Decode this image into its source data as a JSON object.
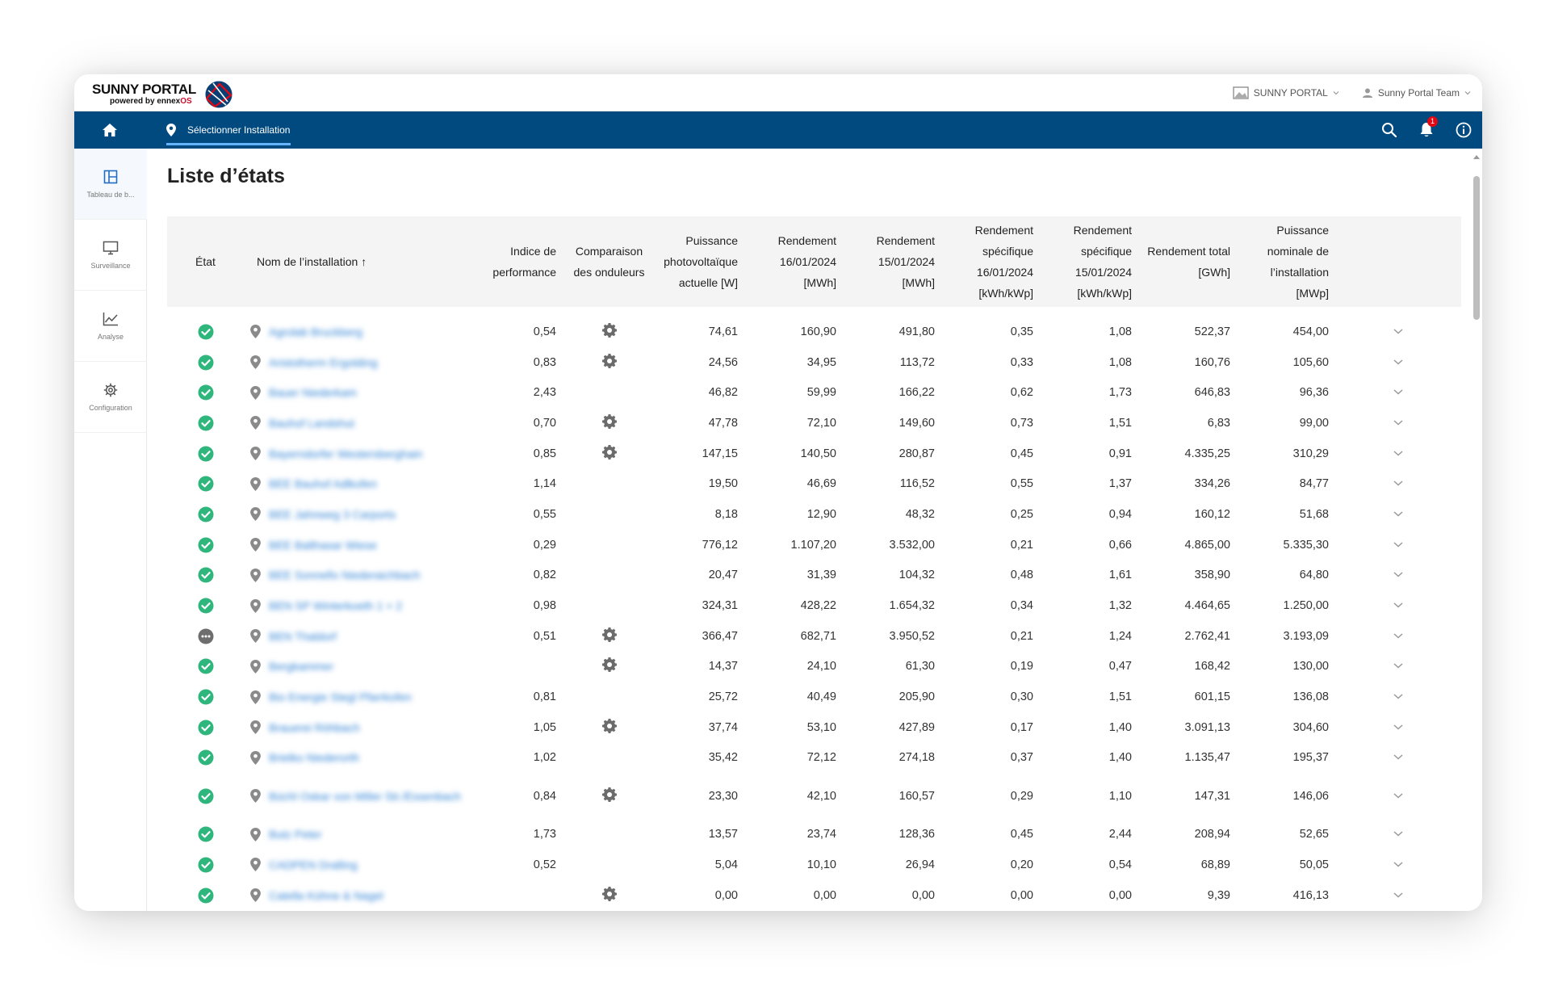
{
  "header": {
    "logo_title": "SUNNY PORTAL",
    "logo_sub_prefix": "powered by ennex",
    "logo_sub_suffix": "OS",
    "portal_switch_label": "SUNNY PORTAL",
    "user_label": "Sunny Portal Team"
  },
  "nav": {
    "select_installation_label": "Sélectionner Installation",
    "notification_count": "1"
  },
  "sidebar": {
    "items": [
      {
        "label": "Tableau de b...",
        "icon": "dashboard-icon"
      },
      {
        "label": "Surveillance",
        "icon": "monitor-icon"
      },
      {
        "label": "Analyse",
        "icon": "chart-line-icon"
      },
      {
        "label": "Configuration",
        "icon": "gear-icon"
      }
    ]
  },
  "page": {
    "title": "Liste d’états"
  },
  "table": {
    "columns": {
      "etat": "État",
      "name": "Nom de l’installation",
      "perf": "Indice de performance",
      "inverter": "Comparaison des onduleurs",
      "pv_power": "Puissance photovoltaïque actuelle [W]",
      "yield_1": "Rendement 16/01/2024 [MWh]",
      "yield_2": "Rendement 15/01/2024 [MWh]",
      "spec_1": "Rendement spécifique 16/01/2024 [kWh/kWp]",
      "spec_2": "Rendement spécifique 15/01/2024 [kWh/kWp]",
      "total": "Rendement total [GWh]",
      "nominal": "Puissance nominale de l’installation [MWp]"
    },
    "rows": [
      {
        "status": "ok",
        "name": "Agrolab Bruckberg",
        "perf": "0,54",
        "gear": true,
        "pv": "74,61",
        "y1": "160,90",
        "y2": "491,80",
        "s1": "0,35",
        "s2": "1,08",
        "total": "522,37",
        "nominal": "454,00"
      },
      {
        "status": "ok",
        "name": "Aristotherm Ergolding",
        "perf": "0,83",
        "gear": true,
        "pv": "24,56",
        "y1": "34,95",
        "y2": "113,72",
        "s1": "0,33",
        "s2": "1,08",
        "total": "160,76",
        "nominal": "105,60"
      },
      {
        "status": "ok",
        "name": "Bauer Niederkam",
        "perf": "2,43",
        "gear": false,
        "pv": "46,82",
        "y1": "59,99",
        "y2": "166,22",
        "s1": "0,62",
        "s2": "1,73",
        "total": "646,83",
        "nominal": "96,36"
      },
      {
        "status": "ok",
        "name": "Bauhof Landshut",
        "perf": "0,70",
        "gear": true,
        "pv": "47,78",
        "y1": "72,10",
        "y2": "149,60",
        "s1": "0,73",
        "s2": "1,51",
        "total": "6,83",
        "nominal": "99,00"
      },
      {
        "status": "ok",
        "name": "Bayerndorfer Westersberghain",
        "perf": "0,85",
        "gear": true,
        "pv": "147,15",
        "y1": "140,50",
        "y2": "280,87",
        "s1": "0,45",
        "s2": "0,91",
        "total": "4.335,25",
        "nominal": "310,29"
      },
      {
        "status": "ok",
        "name": "BEE Bauhof Adlkofen",
        "perf": "1,14",
        "gear": false,
        "pv": "19,50",
        "y1": "46,69",
        "y2": "116,52",
        "s1": "0,55",
        "s2": "1,37",
        "total": "334,26",
        "nominal": "84,77"
      },
      {
        "status": "ok",
        "name": "BEE Jahnweg 3 Carports",
        "perf": "0,55",
        "gear": false,
        "pv": "8,18",
        "y1": "12,90",
        "y2": "48,32",
        "s1": "0,25",
        "s2": "0,94",
        "total": "160,12",
        "nominal": "51,68"
      },
      {
        "status": "ok",
        "name": "BEE Balthasar Wiese",
        "perf": "0,29",
        "gear": false,
        "pv": "776,12",
        "y1": "1.107,20",
        "y2": "3.532,00",
        "s1": "0,21",
        "s2": "0,66",
        "total": "4.865,00",
        "nominal": "5.335,30"
      },
      {
        "status": "ok",
        "name": "BEE Sonnefix Niederaichbach",
        "perf": "0,82",
        "gear": false,
        "pv": "20,47",
        "y1": "31,39",
        "y2": "104,32",
        "s1": "0,48",
        "s2": "1,61",
        "total": "358,90",
        "nominal": "64,80"
      },
      {
        "status": "ok",
        "name": "BEN SP Winterkoeth 1 + 2",
        "perf": "0,98",
        "gear": false,
        "pv": "324,31",
        "y1": "428,22",
        "y2": "1.654,32",
        "s1": "0,34",
        "s2": "1,32",
        "total": "4.464,65",
        "nominal": "1.250,00"
      },
      {
        "status": "off",
        "name": "BEN Thaldorf",
        "perf": "0,51",
        "gear": true,
        "pv": "366,47",
        "y1": "682,71",
        "y2": "3.950,52",
        "s1": "0,21",
        "s2": "1,24",
        "total": "2.762,41",
        "nominal": "3.193,09"
      },
      {
        "status": "ok",
        "name": "Bergkammer",
        "perf": "",
        "gear": true,
        "pv": "14,37",
        "y1": "24,10",
        "y2": "61,30",
        "s1": "0,19",
        "s2": "0,47",
        "total": "168,42",
        "nominal": "130,00"
      },
      {
        "status": "ok",
        "name": "Bio Energie Stegl Pfarrkofen",
        "perf": "0,81",
        "gear": false,
        "pv": "25,72",
        "y1": "40,49",
        "y2": "205,90",
        "s1": "0,30",
        "s2": "1,51",
        "total": "601,15",
        "nominal": "136,08"
      },
      {
        "status": "ok",
        "name": "Brauerei Röhbach",
        "perf": "1,05",
        "gear": true,
        "pv": "37,74",
        "y1": "53,10",
        "y2": "427,89",
        "s1": "0,17",
        "s2": "1,40",
        "total": "3.091,13",
        "nominal": "304,60"
      },
      {
        "status": "ok",
        "name": "Brielko Niederorth",
        "perf": "1,02",
        "gear": false,
        "pv": "35,42",
        "y1": "72,12",
        "y2": "274,18",
        "s1": "0,37",
        "s2": "1,40",
        "total": "1.135,47",
        "nominal": "195,37"
      },
      {
        "status": "ok",
        "name": "Büchl Oskar von Miller Str./Essenbach",
        "perf": "0,84",
        "gear": true,
        "pv": "23,30",
        "y1": "42,10",
        "y2": "160,57",
        "s1": "0,29",
        "s2": "1,10",
        "total": "147,31",
        "nominal": "146,06",
        "tall": true
      },
      {
        "status": "ok",
        "name": "Butz Peter",
        "perf": "1,73",
        "gear": false,
        "pv": "13,57",
        "y1": "23,74",
        "y2": "128,36",
        "s1": "0,45",
        "s2": "2,44",
        "total": "208,94",
        "nominal": "52,65"
      },
      {
        "status": "ok",
        "name": "CADPEN Dralling",
        "perf": "0,52",
        "gear": false,
        "pv": "5,04",
        "y1": "10,10",
        "y2": "26,94",
        "s1": "0,20",
        "s2": "0,54",
        "total": "68,89",
        "nominal": "50,05"
      },
      {
        "status": "ok",
        "name": "Catella Kühne & Nagel",
        "perf": "",
        "gear": true,
        "pv": "0,00",
        "y1": "0,00",
        "y2": "0,00",
        "s1": "0,00",
        "s2": "0,00",
        "total": "9,39",
        "nominal": "416,13"
      }
    ]
  },
  "colors": {
    "navbar": "#004a80",
    "status_ok": "#2eb67d",
    "status_offline": "#6e6e6e",
    "link": "#2a7fd4",
    "badge": "#e30613"
  }
}
